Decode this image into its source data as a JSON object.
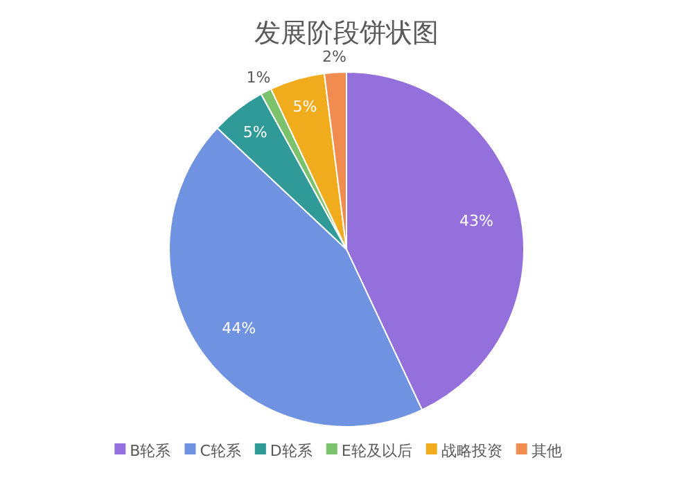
{
  "chart_data": {
    "type": "pie",
    "title": "发展阶段饼状图",
    "categories": [
      "B轮系",
      "C轮系",
      "D轮系",
      "E轮及以后",
      "战略投资",
      "其他"
    ],
    "values": [
      43,
      44,
      5,
      1,
      5,
      2
    ],
    "colors": [
      "#9370db",
      "#6f93e0",
      "#2f9a98",
      "#7cc26c",
      "#f0ac1d",
      "#f08c50"
    ],
    "value_labels": [
      "43%",
      "44%",
      "5%",
      "1%",
      "5%",
      "2%"
    ],
    "legend": "bottom"
  }
}
